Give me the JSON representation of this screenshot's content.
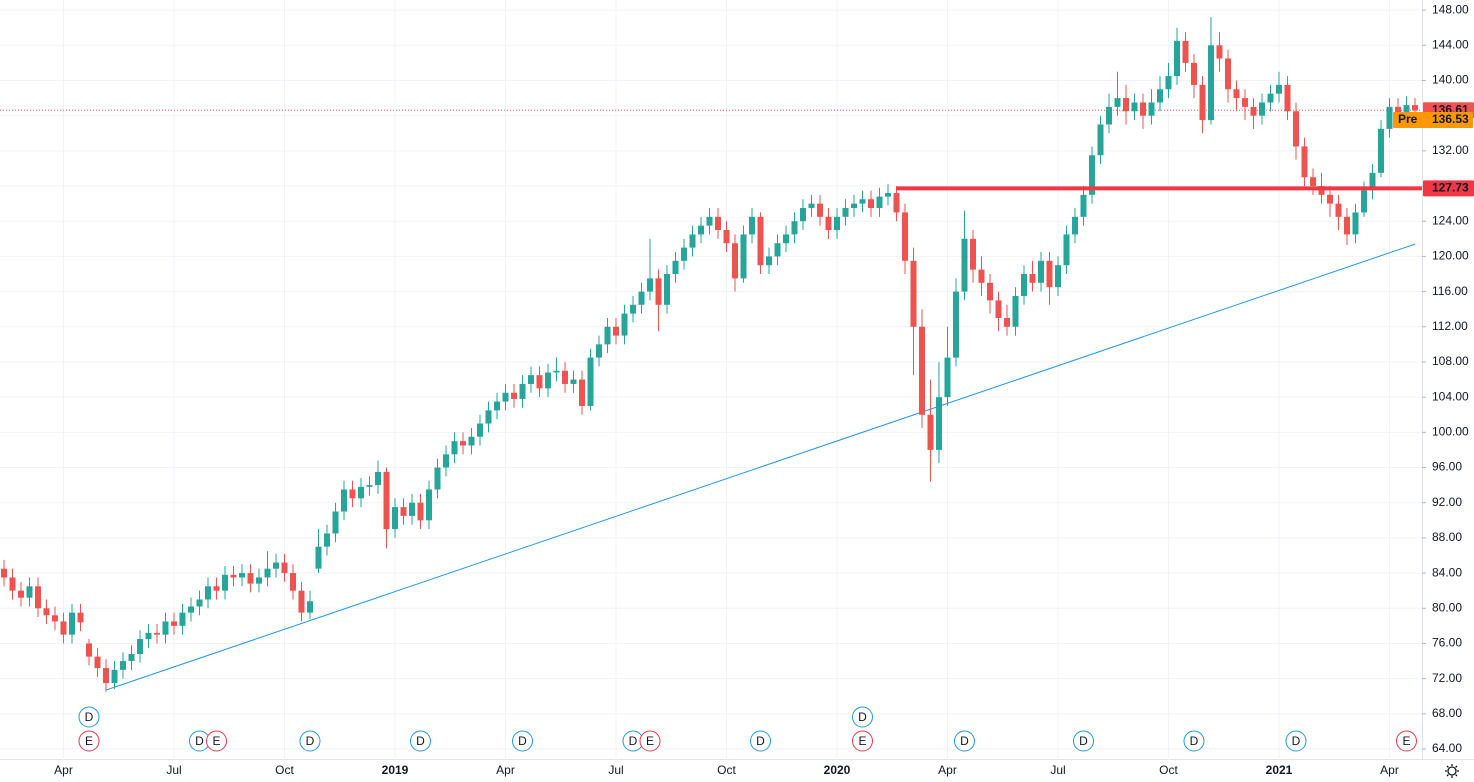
{
  "chart_data": {
    "type": "candlestick",
    "categories": [
      null,
      null,
      null,
      null,
      null,
      null,
      null,
      "Apr",
      null,
      null,
      null,
      null,
      null,
      null,
      null,
      null,
      null,
      null,
      null,
      null,
      "Jul",
      null,
      null,
      null,
      null,
      null,
      null,
      null,
      null,
      null,
      null,
      null,
      null,
      "Oct",
      null,
      null,
      null,
      null,
      null,
      null,
      null,
      null,
      null,
      null,
      null,
      null,
      "2019",
      null,
      null,
      null,
      null,
      null,
      null,
      null,
      null,
      null,
      null,
      null,
      null,
      "Apr",
      null,
      null,
      null,
      null,
      null,
      null,
      null,
      null,
      null,
      null,
      null,
      null,
      "Jul",
      null,
      null,
      null,
      null,
      null,
      null,
      null,
      null,
      null,
      null,
      null,
      null,
      "Oct",
      null,
      null,
      null,
      null,
      null,
      null,
      null,
      null,
      null,
      null,
      null,
      null,
      "2020",
      null,
      null,
      null,
      null,
      null,
      null,
      null,
      null,
      null,
      null,
      null,
      null,
      "Apr",
      null,
      null,
      null,
      null,
      null,
      null,
      null,
      null,
      null,
      null,
      null,
      null,
      "Jul",
      null,
      null,
      null,
      null,
      null,
      null,
      null,
      null,
      null,
      null,
      null,
      null,
      "Oct",
      null,
      null,
      null,
      null,
      null,
      null,
      null,
      null,
      null,
      null,
      null,
      null,
      "2021",
      null,
      null,
      null,
      null,
      null,
      null,
      null,
      null,
      null,
      null,
      null,
      null,
      "Apr",
      null,
      null,
      null
    ],
    "open": [
      84.5,
      83.5,
      82.0,
      81.2,
      82.5,
      80.0,
      79.2,
      78.5,
      77.0,
      79.5,
      76.0,
      74.5,
      73.2,
      71.5,
      73.0,
      74.0,
      74.8,
      76.5,
      77.2,
      77.0,
      78.5,
      78.0,
      79.5,
      80.2,
      81.0,
      82.5,
      82.0,
      83.8,
      83.5,
      84.0,
      82.8,
      83.5,
      84.5,
      85.2,
      84.0,
      82.0,
      79.5,
      84.5,
      87.0,
      88.5,
      91.0,
      93.5,
      92.5,
      93.8,
      94.0,
      95.5,
      89.0,
      91.5,
      90.5,
      92.0,
      90.0,
      93.5,
      96.0,
      97.5,
      99.0,
      98.5,
      99.5,
      101.0,
      102.5,
      103.5,
      104.5,
      103.8,
      105.5,
      106.5,
      105.0,
      106.8,
      107.0,
      105.5,
      106.0,
      103.0,
      108.5,
      110.0,
      112.0,
      111.0,
      113.5,
      114.5,
      116.0,
      117.5,
      114.5,
      118.0,
      119.5,
      121.0,
      122.5,
      123.5,
      124.5,
      123.0,
      121.5,
      117.5,
      122.5,
      124.5,
      119.0,
      120.0,
      121.5,
      122.5,
      124.0,
      125.5,
      126.0,
      124.5,
      123.0,
      124.5,
      125.5,
      126.0,
      126.5,
      125.5,
      126.8,
      127.2,
      125.0,
      119.5,
      112.0,
      102.0,
      98.0,
      104.0,
      108.5,
      116.0,
      122.0,
      118.5,
      117.0,
      115.0,
      113.0,
      112.0,
      115.5,
      118.0,
      117.0,
      119.5,
      116.5,
      119.0,
      122.5,
      124.5,
      127.0,
      131.5,
      135.0,
      137.0,
      138.0,
      136.5,
      137.5,
      136.0,
      137.5,
      139.0,
      140.5,
      144.5,
      142.0,
      139.5,
      135.5,
      144.0,
      142.5,
      139.0,
      138.0,
      137.0,
      136.0,
      137.5,
      138.5,
      139.5,
      136.5,
      132.5,
      129.0,
      128.0,
      127.0,
      126.0,
      124.5,
      122.5,
      125.0,
      127.5,
      129.5,
      134.5,
      137.0,
      136.0,
      137.2
    ],
    "high": [
      85.5,
      84.5,
      83.0,
      83.5,
      83.5,
      81.0,
      80.2,
      79.5,
      80.5,
      80.5,
      76.5,
      75.5,
      74.2,
      74.0,
      75.0,
      75.8,
      77.5,
      78.2,
      78.2,
      79.5,
      79.5,
      80.5,
      81.2,
      82.0,
      83.5,
      83.5,
      84.8,
      84.8,
      85.0,
      85.0,
      84.5,
      86.5,
      86.2,
      86.2,
      85.0,
      83.0,
      82.0,
      89.0,
      89.5,
      92.0,
      94.5,
      94.5,
      94.8,
      95.0,
      96.8,
      96.0,
      92.5,
      92.5,
      93.0,
      93.0,
      94.5,
      97.0,
      98.5,
      100.0,
      100.0,
      100.5,
      102.0,
      103.5,
      104.5,
      105.5,
      105.5,
      106.5,
      107.5,
      107.5,
      107.8,
      108.5,
      108.0,
      107.0,
      107.0,
      109.5,
      111.0,
      113.0,
      113.0,
      114.5,
      115.5,
      117.0,
      122.0,
      118.5,
      119.0,
      120.5,
      122.0,
      123.5,
      124.5,
      125.5,
      125.5,
      124.0,
      122.5,
      123.5,
      125.5,
      125.0,
      121.0,
      122.5,
      123.5,
      125.0,
      126.5,
      127.0,
      127.0,
      125.5,
      125.5,
      126.5,
      127.0,
      127.5,
      127.5,
      127.8,
      128.2,
      128.0,
      126.0,
      121.0,
      114.0,
      106.0,
      108.0,
      112.0,
      117.5,
      125.2,
      123.0,
      120.0,
      118.0,
      116.0,
      114.5,
      116.5,
      119.0,
      119.5,
      120.5,
      120.5,
      120.0,
      123.5,
      125.5,
      128.0,
      132.5,
      136.0,
      138.5,
      141.0,
      139.5,
      138.5,
      138.5,
      139.0,
      140.5,
      142.0,
      146.0,
      145.5,
      143.0,
      140.5,
      147.2,
      145.5,
      143.5,
      140.0,
      139.0,
      138.0,
      138.5,
      139.5,
      141.0,
      140.5,
      137.5,
      133.5,
      130.0,
      129.5,
      128.0,
      127.0,
      125.5,
      126.0,
      128.5,
      130.5,
      135.5,
      138.0,
      138.0,
      138.2,
      138.0
    ],
    "low": [
      82.5,
      81.0,
      80.2,
      80.2,
      79.0,
      78.2,
      77.5,
      76.0,
      76.0,
      77.4,
      73.5,
      72.2,
      70.5,
      70.8,
      72.0,
      73.0,
      73.8,
      75.5,
      76.0,
      76.0,
      77.0,
      77.0,
      78.5,
      79.2,
      80.0,
      81.0,
      81.0,
      82.5,
      82.5,
      81.8,
      81.8,
      82.5,
      83.5,
      83.0,
      81.0,
      78.5,
      78.8,
      84.0,
      86.0,
      87.5,
      90.0,
      91.5,
      91.5,
      92.8,
      93.0,
      86.8,
      88.0,
      89.5,
      89.5,
      89.0,
      89.0,
      92.5,
      95.0,
      96.5,
      97.5,
      97.5,
      98.5,
      100.0,
      101.5,
      102.5,
      102.8,
      102.8,
      104.5,
      104.0,
      104.0,
      105.8,
      104.5,
      104.5,
      102.0,
      102.5,
      107.5,
      109.0,
      110.0,
      110.0,
      112.5,
      113.5,
      115.0,
      111.5,
      113.5,
      117.0,
      118.5,
      120.0,
      121.5,
      122.5,
      122.0,
      120.5,
      116.0,
      117.0,
      121.5,
      118.0,
      118.0,
      119.0,
      120.5,
      121.5,
      123.0,
      124.5,
      123.5,
      122.0,
      122.0,
      123.5,
      124.5,
      125.0,
      124.5,
      124.5,
      125.8,
      124.0,
      118.0,
      106.5,
      100.5,
      94.4,
      96.5,
      103.0,
      107.5,
      115.0,
      117.0,
      115.5,
      113.5,
      111.5,
      111.0,
      111.0,
      114.5,
      116.0,
      116.0,
      114.5,
      115.5,
      118.0,
      121.5,
      123.5,
      126.0,
      130.5,
      134.0,
      136.0,
      135.0,
      135.5,
      134.5,
      135.0,
      136.5,
      138.0,
      139.5,
      141.0,
      138.0,
      134.0,
      135.0,
      141.0,
      137.5,
      136.5,
      135.5,
      134.5,
      135.0,
      136.5,
      137.5,
      135.5,
      131.0,
      128.0,
      127.0,
      126.0,
      124.5,
      123.0,
      121.3,
      121.5,
      124.5,
      126.5,
      129.0,
      133.5,
      135.0,
      135.2,
      135.8
    ],
    "close": [
      83.5,
      82.0,
      81.2,
      82.5,
      80.0,
      79.2,
      78.5,
      77.0,
      79.5,
      78.4,
      74.5,
      73.2,
      71.5,
      73.0,
      74.0,
      74.8,
      76.5,
      77.2,
      77.0,
      78.5,
      78.0,
      79.5,
      80.2,
      81.0,
      82.5,
      82.0,
      83.8,
      83.5,
      84.0,
      82.8,
      83.5,
      84.5,
      85.2,
      84.0,
      82.0,
      79.5,
      80.8,
      87.0,
      88.5,
      91.0,
      93.5,
      92.5,
      93.8,
      94.0,
      95.5,
      89.0,
      91.5,
      90.5,
      92.0,
      90.0,
      93.5,
      96.0,
      97.5,
      99.0,
      98.5,
      99.5,
      101.0,
      102.5,
      103.5,
      104.5,
      103.8,
      105.5,
      106.5,
      105.0,
      106.8,
      107.0,
      105.5,
      106.0,
      103.0,
      108.5,
      110.0,
      112.0,
      111.0,
      113.5,
      114.5,
      116.0,
      117.5,
      114.5,
      118.0,
      119.5,
      121.0,
      122.5,
      123.5,
      124.5,
      123.0,
      121.5,
      117.5,
      122.5,
      124.5,
      119.0,
      120.0,
      121.5,
      122.5,
      124.0,
      125.5,
      126.0,
      124.5,
      123.0,
      124.5,
      125.5,
      126.0,
      126.5,
      125.5,
      126.8,
      127.2,
      125.0,
      119.5,
      112.0,
      102.0,
      98.0,
      104.0,
      108.5,
      116.0,
      122.0,
      118.5,
      117.0,
      115.0,
      113.0,
      112.0,
      115.5,
      118.0,
      117.0,
      119.5,
      116.5,
      119.0,
      122.5,
      124.5,
      127.0,
      131.5,
      135.0,
      137.0,
      138.0,
      136.5,
      137.5,
      136.0,
      137.5,
      139.0,
      140.5,
      144.5,
      142.0,
      139.5,
      135.5,
      144.0,
      142.5,
      139.0,
      138.0,
      137.0,
      136.0,
      137.5,
      138.5,
      139.5,
      136.5,
      132.5,
      129.0,
      128.0,
      127.0,
      126.0,
      124.5,
      122.5,
      125.0,
      127.5,
      129.5,
      134.5,
      137.0,
      136.0,
      137.2,
      136.6
    ],
    "up_color": "#26a69a",
    "down_color": "#ef5350",
    "ylim": [
      62.75,
      149.15
    ],
    "yticks": [
      {
        "value": 64,
        "label": "64.00"
      },
      {
        "value": 68,
        "label": "68.00"
      },
      {
        "value": 72,
        "label": "72.00"
      },
      {
        "value": 76,
        "label": "76.00"
      },
      {
        "value": 80,
        "label": "80.00"
      },
      {
        "value": 84,
        "label": "84.00"
      },
      {
        "value": 88,
        "label": "88.00"
      },
      {
        "value": 92,
        "label": "92.00"
      },
      {
        "value": 96,
        "label": "96.00"
      },
      {
        "value": 100,
        "label": "100.00"
      },
      {
        "value": 104,
        "label": "104.00"
      },
      {
        "value": 108,
        "label": "108.00"
      },
      {
        "value": 112,
        "label": "112.00"
      },
      {
        "value": 116,
        "label": "116.00"
      },
      {
        "value": 120,
        "label": "120.00"
      },
      {
        "value": 124,
        "label": "124.00"
      },
      {
        "value": 128,
        "label": "128.00"
      },
      {
        "value": 132,
        "label": "132.00"
      },
      {
        "value": 136,
        "label": "136.00"
      },
      {
        "value": 140,
        "label": "140.00"
      },
      {
        "value": 144,
        "label": "144.00"
      },
      {
        "value": 148,
        "label": "148.00"
      }
    ],
    "grid": true,
    "last_price": {
      "value": 136.61,
      "color": "#ef5350"
    },
    "premarket": {
      "label": "Pre",
      "value": 136.53,
      "color": "#ff9800"
    },
    "level": {
      "value": 127.73,
      "start": 105,
      "color": "#f23645"
    },
    "trend": {
      "x": [
        12,
        166
      ],
      "values": [
        70.7,
        121.4
      ],
      "color": "#2196f3"
    },
    "events": [
      {
        "index": 10,
        "label": "E"
      },
      {
        "index": 10,
        "label": "D"
      },
      {
        "index": 23,
        "label": "D"
      },
      {
        "index": 25,
        "label": "E"
      },
      {
        "index": 36,
        "label": "D"
      },
      {
        "index": 49,
        "label": "D"
      },
      {
        "index": 61,
        "label": "D"
      },
      {
        "index": 74,
        "label": "D"
      },
      {
        "index": 76,
        "label": "E"
      },
      {
        "index": 89,
        "label": "D"
      },
      {
        "index": 101,
        "label": "E"
      },
      {
        "index": 101,
        "label": "D"
      },
      {
        "index": 113,
        "label": "D"
      },
      {
        "index": 127,
        "label": "D"
      },
      {
        "index": 140,
        "label": "D"
      },
      {
        "index": 152,
        "label": "D"
      },
      {
        "index": 165,
        "label": "E"
      }
    ]
  }
}
